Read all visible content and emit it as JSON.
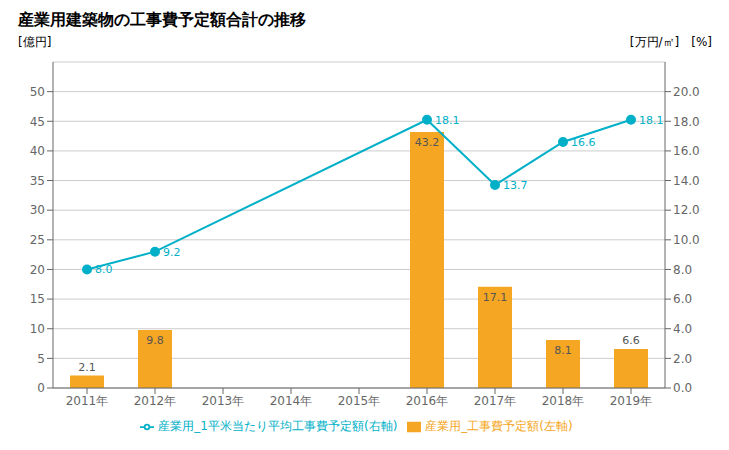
{
  "chart_data": {
    "type": "bar",
    "title": "産業用建築物の工事費予定額合計の推移",
    "categories": [
      "2011年",
      "2012年",
      "2013年",
      "2014年",
      "2015年",
      "2016年",
      "2017年",
      "2018年",
      "2019年"
    ],
    "ylabel": "[億円]",
    "y2label": "[万円/㎡]",
    "annotations": [
      "[%]"
    ],
    "ylim": [
      0,
      55
    ],
    "yticks": [
      0,
      5,
      10,
      15,
      20,
      25,
      30,
      35,
      40,
      45,
      50
    ],
    "y2lim": [
      0,
      22
    ],
    "y2ticks": [
      {
        "value": 0,
        "label": "0.0"
      },
      {
        "value": 2,
        "label": "2.0"
      },
      {
        "value": 4,
        "label": "4.0"
      },
      {
        "value": 6,
        "label": "6.0"
      },
      {
        "value": 8,
        "label": "8.0"
      },
      {
        "value": 10,
        "label": "10.0"
      },
      {
        "value": 12,
        "label": "12.0"
      },
      {
        "value": 14,
        "label": "14.0"
      },
      {
        "value": 16,
        "label": "16.0"
      },
      {
        "value": 18,
        "label": "18.0"
      },
      {
        "value": 20,
        "label": "20.0"
      }
    ],
    "grid": true,
    "legend": "bottom",
    "data_labels": true,
    "series": [
      {
        "name": "産業用_工事費予定額(左軸)",
        "type": "bar",
        "color": "#f5a623",
        "values": [
          2.1,
          9.8,
          0,
          0,
          0,
          43.2,
          17.1,
          8.1,
          6.6
        ],
        "value_labels": [
          "2.1",
          "9.8",
          null,
          null,
          null,
          "43.2",
          "17.1",
          "8.1",
          "6.6"
        ]
      },
      {
        "name": "産業用_1平米当たり平均工事費予定額(右軸)",
        "type": "line",
        "axis": "y2",
        "color": "#00b0c8",
        "marker": "circle",
        "values": [
          8.0,
          9.2,
          null,
          null,
          null,
          18.1,
          13.7,
          16.6,
          18.1
        ],
        "value_labels": [
          "8.0",
          "9.2",
          null,
          null,
          null,
          "18.1",
          "13.7",
          "16.6",
          "18.1"
        ]
      }
    ]
  }
}
